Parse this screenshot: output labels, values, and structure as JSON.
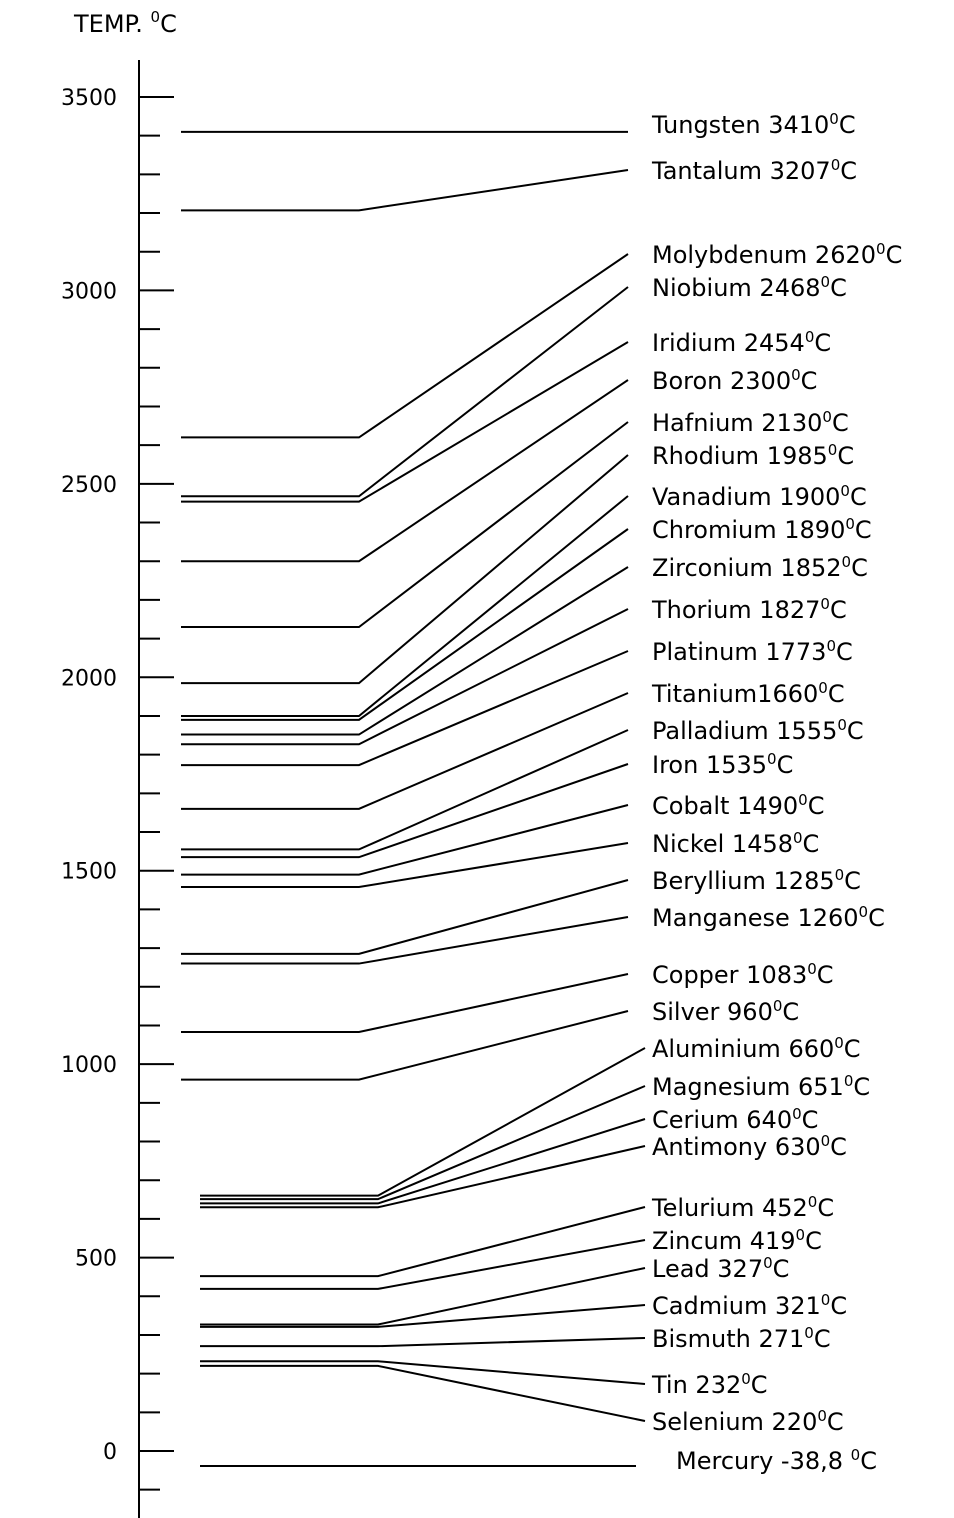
{
  "chart_data": {
    "type": "line",
    "title": "TEMP. °C",
    "title_base": "TEMP. ",
    "title_sup": "0",
    "title_unit": "C",
    "ylim": [
      -80,
      3600
    ],
    "yticks": [
      0,
      500,
      1000,
      1500,
      2000,
      2500,
      3000,
      3500
    ],
    "series": [
      {
        "name": "Tungsten",
        "label": "Tungsten 3410",
        "unit": "C",
        "value": 3410
      },
      {
        "name": "Tantalum",
        "label": "Tantalum 3207",
        "unit": "C",
        "value": 3207
      },
      {
        "name": "Molybdenum",
        "label": "Molybdenum 2620",
        "unit": "C",
        "value": 2620
      },
      {
        "name": "Niobium",
        "label": "Niobium 2468",
        "unit": "C",
        "value": 2468
      },
      {
        "name": "Iridium",
        "label": "Iridium 2454",
        "unit": "C",
        "value": 2454
      },
      {
        "name": "Boron",
        "label": "Boron 2300",
        "unit": "C",
        "value": 2300
      },
      {
        "name": "Hafnium",
        "label": "Hafnium 2130",
        "unit": "C",
        "value": 2130
      },
      {
        "name": "Rhodium",
        "label": "Rhodium 1985",
        "unit": "C",
        "value": 1985
      },
      {
        "name": "Vanadium",
        "label": "Vanadium 1900",
        "unit": "C",
        "value": 1900
      },
      {
        "name": "Chromium",
        "label": "Chromium 1890",
        "unit": "C",
        "value": 1890
      },
      {
        "name": "Zirconium",
        "label": "Zirconium 1852",
        "unit": "C",
        "value": 1852
      },
      {
        "name": "Thorium",
        "label": "Thorium 1827",
        "unit": "C",
        "value": 1827
      },
      {
        "name": "Platinum",
        "label": "Platinum 1773",
        "unit": "C",
        "value": 1773
      },
      {
        "name": "Titanium",
        "label": "Titanium1660",
        "unit": "C",
        "value": 1660
      },
      {
        "name": "Palladium",
        "label": "Palladium 1555",
        "unit": "C",
        "value": 1555
      },
      {
        "name": "Iron",
        "label": "Iron 1535",
        "unit": "C",
        "value": 1535
      },
      {
        "name": "Cobalt",
        "label": "Cobalt 1490",
        "unit": "C",
        "value": 1490
      },
      {
        "name": "Nickel",
        "label": "Nickel 1458",
        "unit": "C",
        "value": 1458
      },
      {
        "name": "Beryllium",
        "label": "Beryllium 1285",
        "unit": "C",
        "value": 1285
      },
      {
        "name": "Manganese",
        "label": "Manganese 1260",
        "unit": "C",
        "value": 1260
      },
      {
        "name": "Copper",
        "label": "Copper 1083",
        "unit": "C",
        "value": 1083
      },
      {
        "name": "Silver",
        "label": "Silver 960",
        "unit": "C",
        "value": 960
      },
      {
        "name": "Aluminium",
        "label": "Aluminium 660",
        "unit": "C",
        "value": 660
      },
      {
        "name": "Magnesium",
        "label": "Magnesium 651",
        "unit": "C",
        "value": 651
      },
      {
        "name": "Cerium",
        "label": "Cerium 640",
        "unit": "C",
        "value": 640
      },
      {
        "name": "Antimony",
        "label": "Antimony 630",
        "unit": "C",
        "value": 630
      },
      {
        "name": "Telurium",
        "label": "Telurium 452",
        "unit": "C",
        "value": 452
      },
      {
        "name": "Zincum",
        "label": "Zincum 419",
        "unit": "C",
        "value": 419
      },
      {
        "name": "Lead",
        "label": "Lead 327",
        "unit": "C",
        "value": 327
      },
      {
        "name": "Cadmium",
        "label": "Cadmium 321",
        "unit": "C",
        "value": 321
      },
      {
        "name": "Bismuth",
        "label": "Bismuth 271",
        "unit": "C",
        "value": 271
      },
      {
        "name": "Tin",
        "label": "Tin 232",
        "unit": "C",
        "value": 232
      },
      {
        "name": "Selenium",
        "label": "Selenium 220",
        "unit": "C",
        "value": 220
      },
      {
        "name": "Mercury",
        "label": "Mercury -38,8 ",
        "unit": "C",
        "value": -38.8
      }
    ]
  }
}
